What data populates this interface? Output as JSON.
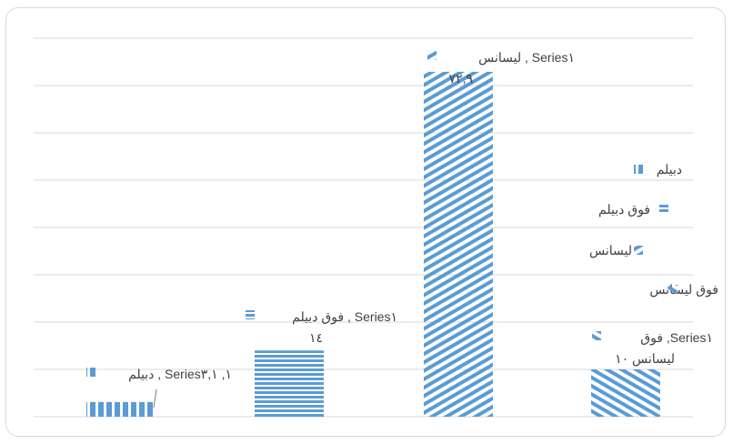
{
  "chart_data": {
    "type": "bar",
    "categories": [
      "دبيلم",
      "فوق دبيلم",
      "ليسانس",
      "فوق ليسانس"
    ],
    "series": [
      {
        "name": "Series١",
        "values": [
          3.1,
          14,
          72.9,
          10
        ]
      }
    ],
    "data_labels": [
      {
        "line1": "دبيلم , Series١, ٣,١",
        "line2": ""
      },
      {
        "line1": "فوق دبيلم , Series١",
        "line2": "١٤"
      },
      {
        "line1": "ليسانس , Series١",
        "line2": "٧٢,٩"
      },
      {
        "line1": "فوق ,Series١",
        "line2": "ليسانس ١٠"
      }
    ],
    "ylim": [
      0,
      80
    ],
    "grid": true,
    "legend": {
      "position": "right",
      "entries": [
        "دبيلم",
        "فوق دبيلم",
        "ليسانس",
        "فوق ليسانس"
      ]
    },
    "colors": {
      "bar": "#5b9bd5",
      "grid": "#d9d9d9",
      "text": "#404040",
      "border": "#d9d9d9"
    },
    "patterns": [
      "vertical",
      "horizontal",
      "diagonal-up",
      "diagonal-down"
    ]
  }
}
